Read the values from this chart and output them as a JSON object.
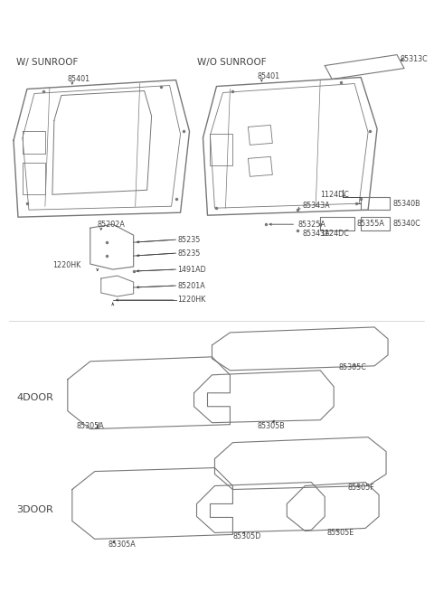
{
  "bg_color": "#ffffff",
  "line_color": "#777777",
  "text_color": "#444444",
  "title_top": "W/ SUNROOF",
  "title_top2": "W/O SUNROOF",
  "label_4door": "4DOOR",
  "label_3door": "3DOOR"
}
